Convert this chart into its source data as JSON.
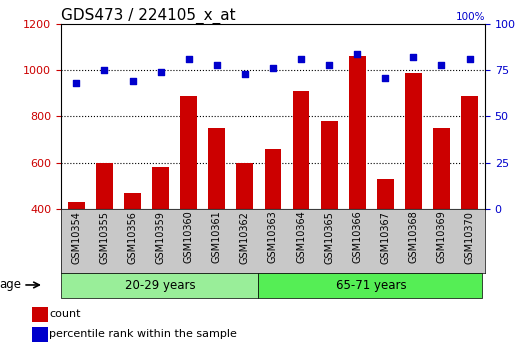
{
  "title": "GDS473 / 224105_x_at",
  "categories": [
    "GSM10354",
    "GSM10355",
    "GSM10356",
    "GSM10359",
    "GSM10360",
    "GSM10361",
    "GSM10362",
    "GSM10363",
    "GSM10364",
    "GSM10365",
    "GSM10366",
    "GSM10367",
    "GSM10368",
    "GSM10369",
    "GSM10370"
  ],
  "counts": [
    430,
    600,
    470,
    580,
    890,
    750,
    600,
    660,
    910,
    780,
    1060,
    530,
    990,
    750,
    890
  ],
  "percentile_ranks": [
    68,
    75,
    69,
    74,
    81,
    78,
    73,
    76,
    81,
    78,
    84,
    71,
    82,
    78,
    81
  ],
  "group1_label": "20-29 years",
  "group2_label": "65-71 years",
  "group1_count": 7,
  "group2_count": 8,
  "ylim_left": [
    400,
    1200
  ],
  "ylim_right": [
    0,
    100
  ],
  "yticks_left": [
    400,
    600,
    800,
    1000,
    1200
  ],
  "yticks_right": [
    0,
    25,
    50,
    75,
    100
  ],
  "bar_color": "#cc0000",
  "scatter_color": "#0000cc",
  "bg_color": "#c8c8c8",
  "group1_color": "#99ee99",
  "group2_color": "#55ee55",
  "age_label": "age",
  "legend_count": "count",
  "legend_percentile": "percentile rank within the sample",
  "title_fontsize": 11,
  "tick_fontsize": 8
}
